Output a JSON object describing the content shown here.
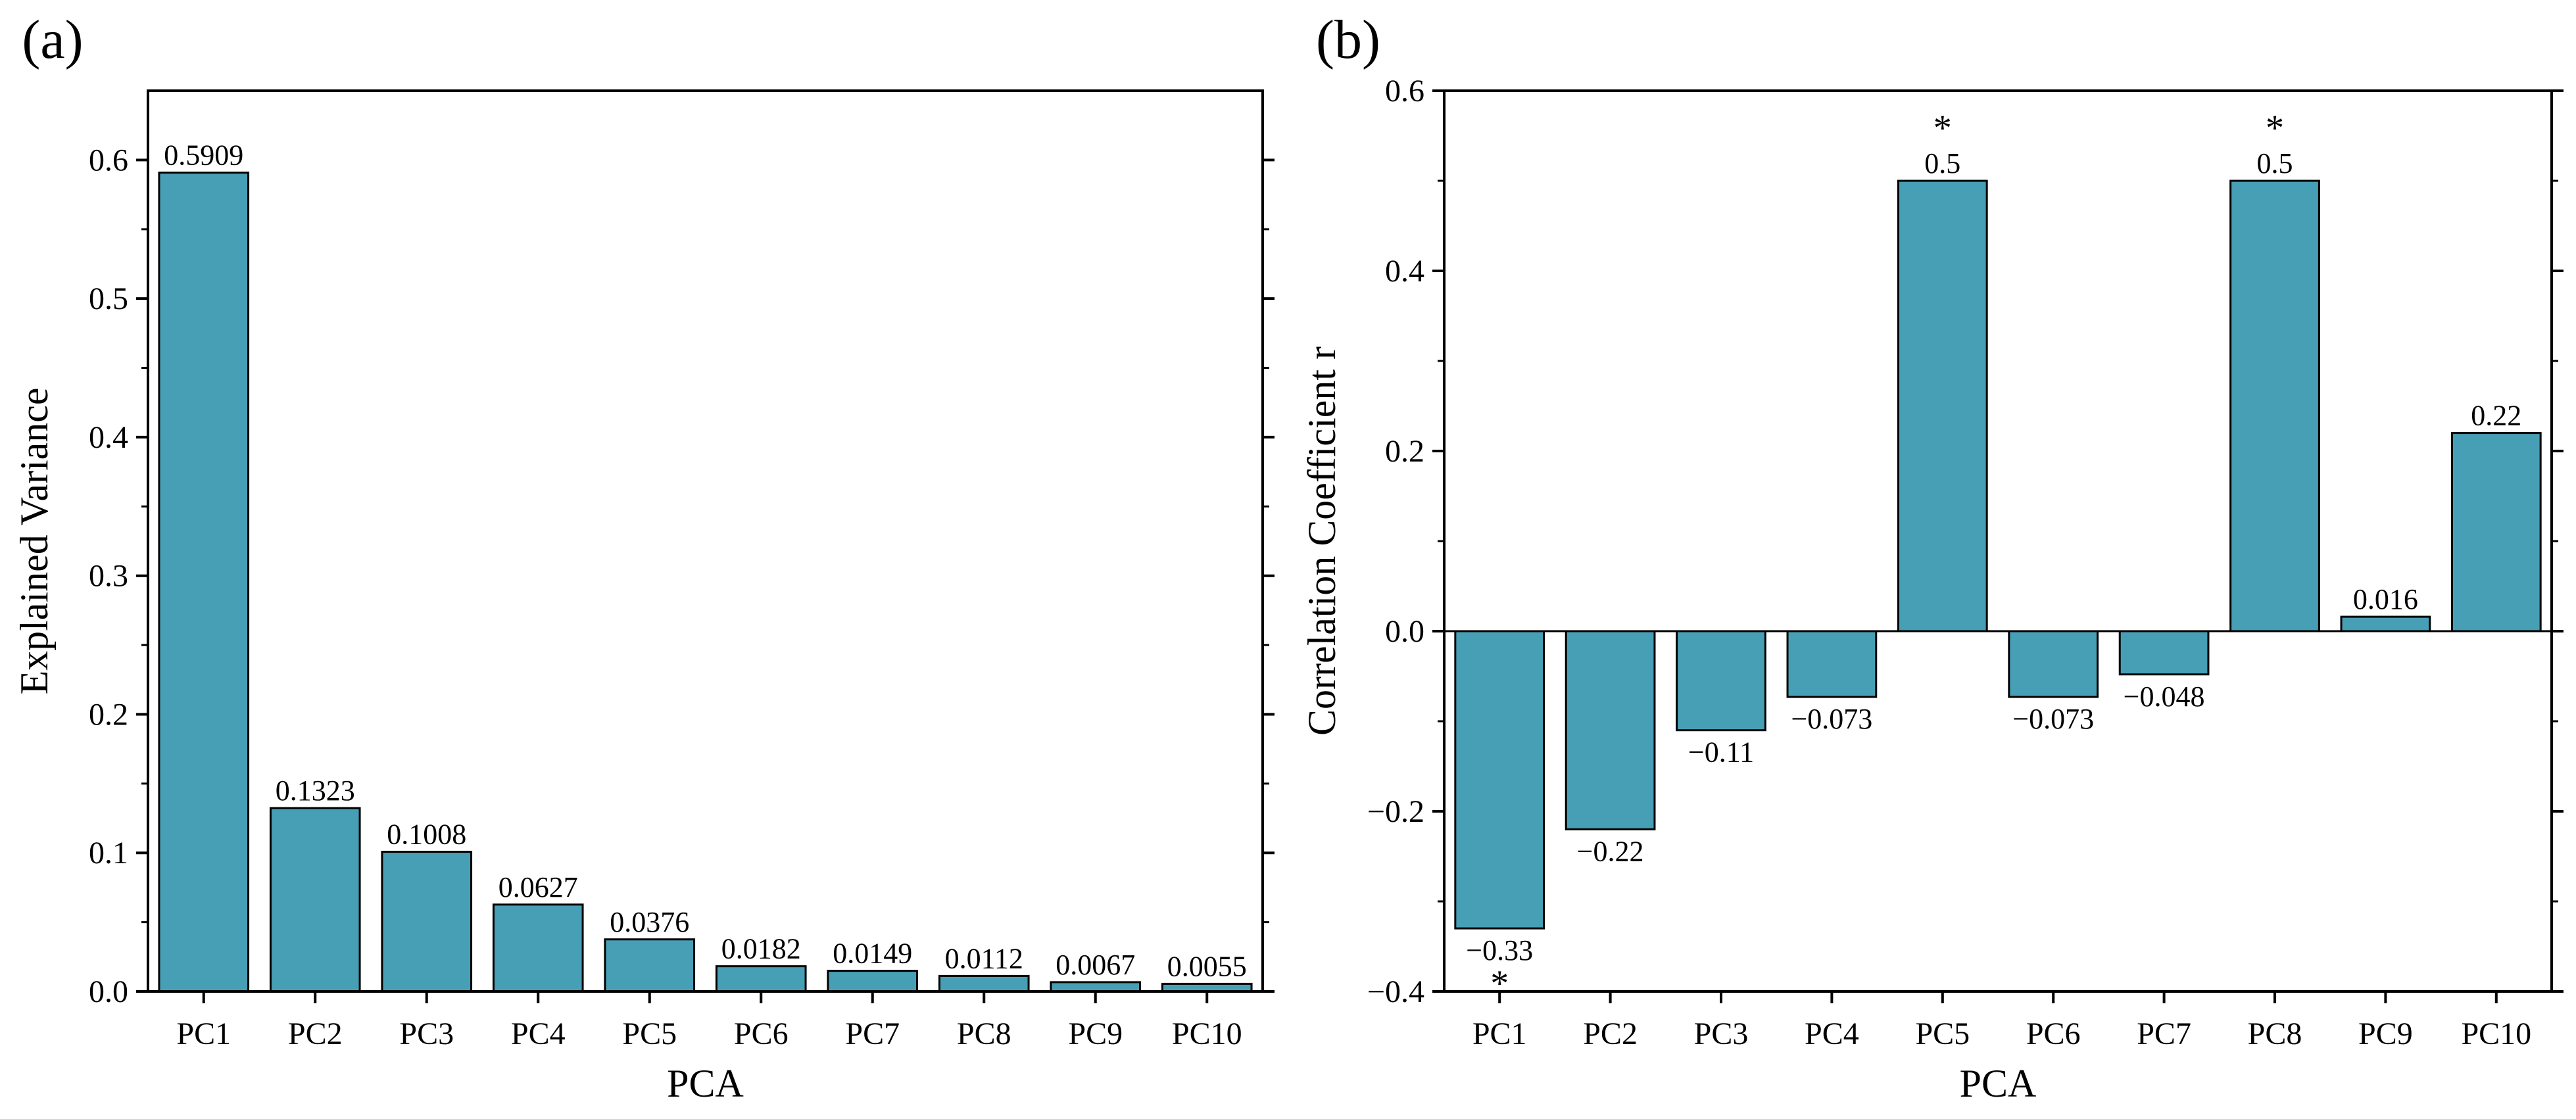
{
  "colors": {
    "bar_fill": "#479fb5",
    "bar_stroke": "#000000",
    "axis": "#000000"
  },
  "chart_data": [
    {
      "panel_label": "(a)",
      "type": "bar",
      "title": "",
      "xlabel": "PCA",
      "ylabel": "Explained Variance",
      "categories": [
        "PC1",
        "PC2",
        "PC3",
        "PC4",
        "PC5",
        "PC6",
        "PC7",
        "PC8",
        "PC9",
        "PC10"
      ],
      "values": [
        0.5909,
        0.1323,
        0.1008,
        0.0627,
        0.0376,
        0.0182,
        0.0149,
        0.0112,
        0.0067,
        0.0055
      ],
      "value_labels": [
        "0.5909",
        "0.1323",
        "0.1008",
        "0.0627",
        "0.0376",
        "0.0182",
        "0.0149",
        "0.0112",
        "0.0067",
        "0.0055"
      ],
      "significance": [
        "",
        "",
        "",
        "",
        "",
        "",
        "",
        "",
        "",
        ""
      ],
      "ylim": [
        0,
        0.65
      ],
      "yticks": [
        0.0,
        0.1,
        0.2,
        0.3,
        0.4,
        0.5,
        0.6
      ],
      "ytick_labels": [
        "0.0",
        "0.1",
        "0.2",
        "0.3",
        "0.4",
        "0.5",
        "0.6"
      ],
      "grid": false
    },
    {
      "panel_label": "(b)",
      "type": "bar",
      "title": "",
      "xlabel": "PCA",
      "ylabel": "Correlation Coefficient r",
      "categories": [
        "PC1",
        "PC2",
        "PC3",
        "PC4",
        "PC5",
        "PC6",
        "PC7",
        "PC8",
        "PC9",
        "PC10"
      ],
      "values": [
        -0.33,
        -0.22,
        -0.11,
        -0.073,
        0.5,
        -0.073,
        -0.048,
        0.5,
        0.016,
        0.22
      ],
      "value_labels": [
        "−0.33",
        "−0.22",
        "−0.11",
        "−0.073",
        "0.5",
        "−0.073",
        "−0.048",
        "0.5",
        "0.016",
        "0.22"
      ],
      "significance": [
        "*",
        "",
        "",
        "",
        "*",
        "",
        "",
        "*",
        "",
        ""
      ],
      "ylim": [
        -0.4,
        0.6
      ],
      "yticks": [
        -0.4,
        -0.2,
        0.0,
        0.2,
        0.4,
        0.6
      ],
      "ytick_labels": [
        "−0.4",
        "−0.2",
        "0.0",
        "0.2",
        "0.4",
        "0.6"
      ],
      "grid": false
    }
  ]
}
